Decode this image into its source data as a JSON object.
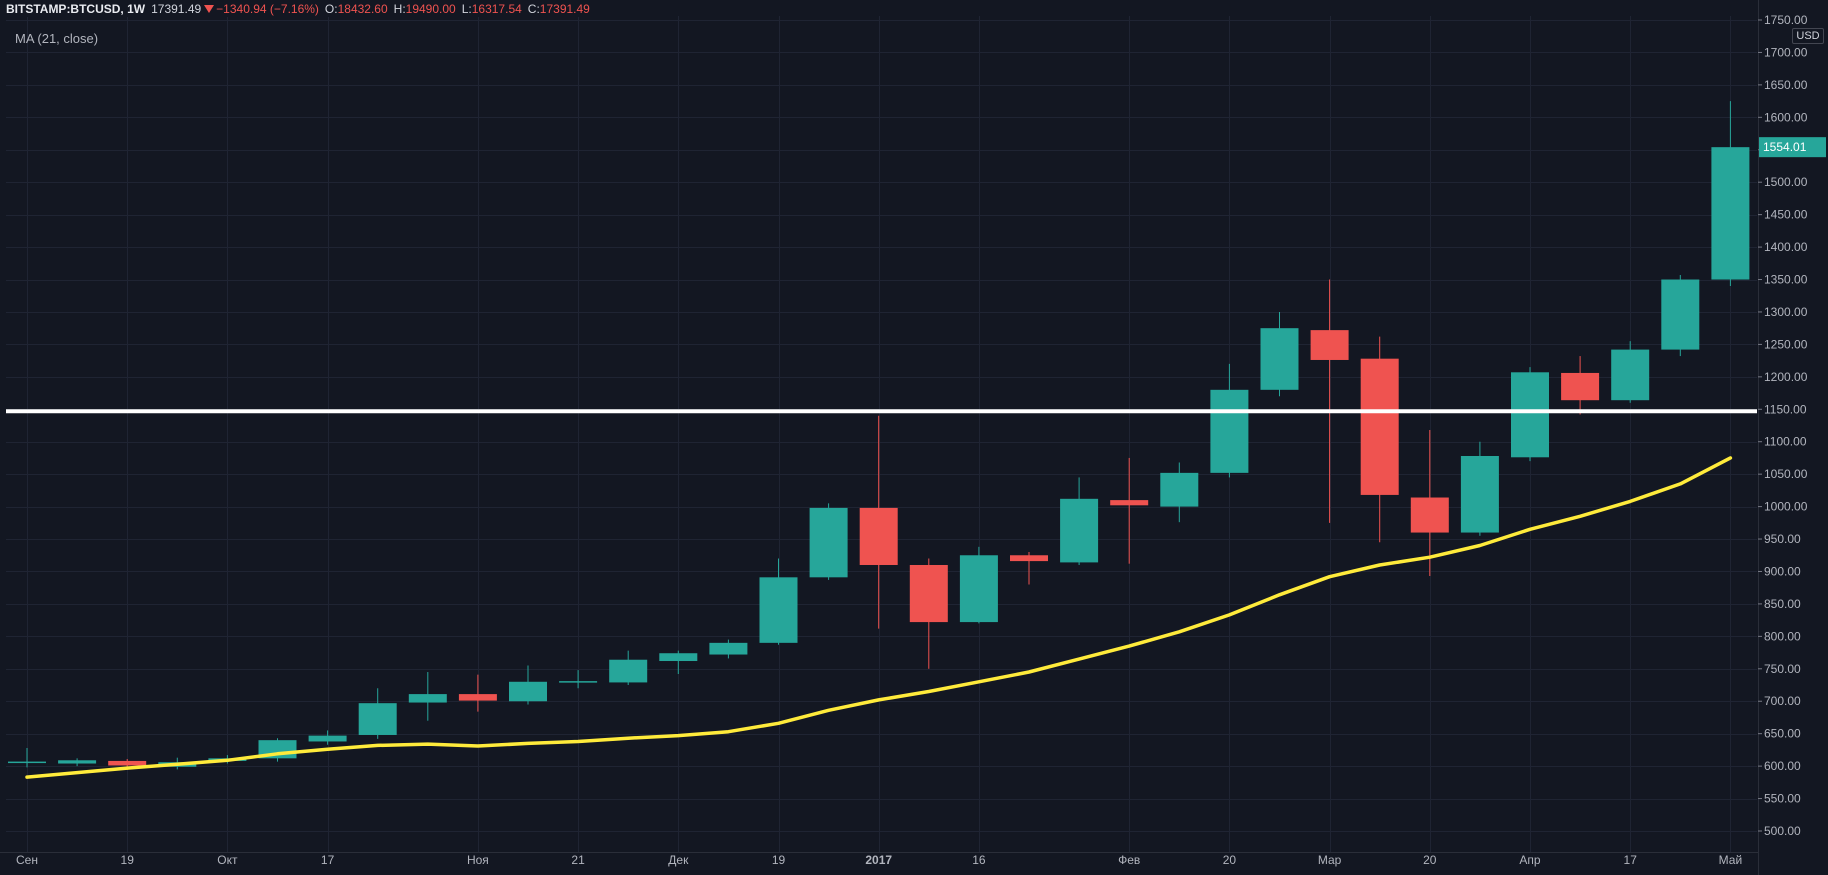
{
  "header": {
    "symbol": "BITSTAMP:BTCUSD, 1W",
    "last": "17391.49",
    "change": "−1340.94 (−7.16%)",
    "o_label": "O:",
    "o": "18432.60",
    "h_label": "H:",
    "h": "19490.00",
    "l_label": "L:",
    "l": "16317.54",
    "c_label": "C:",
    "c": "17391.49"
  },
  "indicator_label": "MA (21, close)",
  "currency": "USD",
  "last_price_label": "1554.01",
  "colors": {
    "background": "#131722",
    "up": "#26a69a",
    "down": "#ef5350",
    "ma_line": "#ffeb3b",
    "h_line": "#ffffff",
    "grid": "#1f2433"
  },
  "chart_data": {
    "type": "candlestick",
    "y_range": [
      490,
      1760
    ],
    "y_ticks": [
      500,
      550,
      600,
      650,
      700,
      750,
      800,
      850,
      900,
      950,
      1000,
      1050,
      1100,
      1150,
      1200,
      1250,
      1300,
      1350,
      1400,
      1450,
      1500,
      1550,
      1600,
      1650,
      1700,
      1750
    ],
    "y_tick_labels": [
      "500.00",
      "550.00",
      "600.00",
      "650.00",
      "700.00",
      "750.00",
      "800.00",
      "850.00",
      "900.00",
      "950.00",
      "1000.00",
      "1050.00",
      "1100.00",
      "1150.00",
      "1200.00",
      "1250.00",
      "1300.00",
      "1350.00",
      "1400.00",
      "1450.00",
      "1500.00",
      "1550.00",
      "1600.00",
      "1650.00",
      "1700.00",
      "1750.00"
    ],
    "x_ticks": [
      {
        "index": 0,
        "label": "Сен",
        "bold": false
      },
      {
        "index": 2,
        "label": "19",
        "bold": false
      },
      {
        "index": 4,
        "label": "Окт",
        "bold": false
      },
      {
        "index": 6,
        "label": "17",
        "bold": false
      },
      {
        "index": 9,
        "label": "Ноя",
        "bold": false
      },
      {
        "index": 11,
        "label": "21",
        "bold": false
      },
      {
        "index": 13,
        "label": "Дек",
        "bold": false
      },
      {
        "index": 15,
        "label": "19",
        "bold": false
      },
      {
        "index": 17,
        "label": "2017",
        "bold": true
      },
      {
        "index": 19,
        "label": "16",
        "bold": false
      },
      {
        "index": 22,
        "label": "Фев",
        "bold": false
      },
      {
        "index": 24,
        "label": "20",
        "bold": false
      },
      {
        "index": 26,
        "label": "Мар",
        "bold": false
      },
      {
        "index": 28,
        "label": "20",
        "bold": false
      },
      {
        "index": 30,
        "label": "Апр",
        "bold": false
      },
      {
        "index": 32,
        "label": "17",
        "bold": false
      },
      {
        "index": 34,
        "label": "Май",
        "bold": false
      }
    ],
    "candles": [
      {
        "o": 606,
        "h": 628,
        "l": 598,
        "c": 607
      },
      {
        "o": 604,
        "h": 612,
        "l": 600,
        "c": 609
      },
      {
        "o": 608,
        "h": 611,
        "l": 594,
        "c": 601
      },
      {
        "o": 599,
        "h": 613,
        "l": 595,
        "c": 606
      },
      {
        "o": 608,
        "h": 617,
        "l": 604,
        "c": 612
      },
      {
        "o": 612,
        "h": 643,
        "l": 607,
        "c": 640
      },
      {
        "o": 638,
        "h": 655,
        "l": 633,
        "c": 647
      },
      {
        "o": 648,
        "h": 720,
        "l": 642,
        "c": 697
      },
      {
        "o": 698,
        "h": 745,
        "l": 670,
        "c": 711
      },
      {
        "o": 711,
        "h": 741,
        "l": 684,
        "c": 701
      },
      {
        "o": 700,
        "h": 755,
        "l": 695,
        "c": 730
      },
      {
        "o": 730,
        "h": 748,
        "l": 720,
        "c": 731
      },
      {
        "o": 729,
        "h": 778,
        "l": 725,
        "c": 764
      },
      {
        "o": 762,
        "h": 778,
        "l": 742,
        "c": 774
      },
      {
        "o": 772,
        "h": 795,
        "l": 766,
        "c": 790
      },
      {
        "o": 790,
        "h": 920,
        "l": 787,
        "c": 891
      },
      {
        "o": 891,
        "h": 1005,
        "l": 887,
        "c": 998
      },
      {
        "o": 998,
        "h": 1140,
        "l": 812,
        "c": 910
      },
      {
        "o": 910,
        "h": 920,
        "l": 750,
        "c": 822
      },
      {
        "o": 822,
        "h": 938,
        "l": 820,
        "c": 925
      },
      {
        "o": 925,
        "h": 930,
        "l": 880,
        "c": 916
      },
      {
        "o": 914,
        "h": 1045,
        "l": 910,
        "c": 1012
      },
      {
        "o": 1010,
        "h": 1075,
        "l": 912,
        "c": 1002
      },
      {
        "o": 1000,
        "h": 1068,
        "l": 976,
        "c": 1052
      },
      {
        "o": 1052,
        "h": 1220,
        "l": 1045,
        "c": 1180
      },
      {
        "o": 1180,
        "h": 1300,
        "l": 1170,
        "c": 1275
      },
      {
        "o": 1272,
        "h": 1350,
        "l": 975,
        "c": 1226
      },
      {
        "o": 1228,
        "h": 1262,
        "l": 945,
        "c": 1018
      },
      {
        "o": 1014,
        "h": 1118,
        "l": 893,
        "c": 960
      },
      {
        "o": 960,
        "h": 1100,
        "l": 955,
        "c": 1078
      },
      {
        "o": 1076,
        "h": 1215,
        "l": 1070,
        "c": 1207
      },
      {
        "o": 1206,
        "h": 1232,
        "l": 1142,
        "c": 1164
      },
      {
        "o": 1164,
        "h": 1255,
        "l": 1160,
        "c": 1242
      },
      {
        "o": 1242,
        "h": 1357,
        "l": 1232,
        "c": 1350
      },
      {
        "o": 1350,
        "h": 1625,
        "l": 1340,
        "c": 1554
      }
    ],
    "ma": [
      583,
      590,
      597,
      603,
      609,
      619,
      626,
      632,
      634,
      631,
      635,
      638,
      643,
      647,
      653,
      666,
      686,
      702,
      715,
      730,
      745,
      765,
      785,
      807,
      833,
      864,
      892,
      910,
      922,
      940,
      965,
      985,
      1008,
      1035,
      1075
    ],
    "horizontal_line": 1147,
    "last_price": 1554.01
  }
}
